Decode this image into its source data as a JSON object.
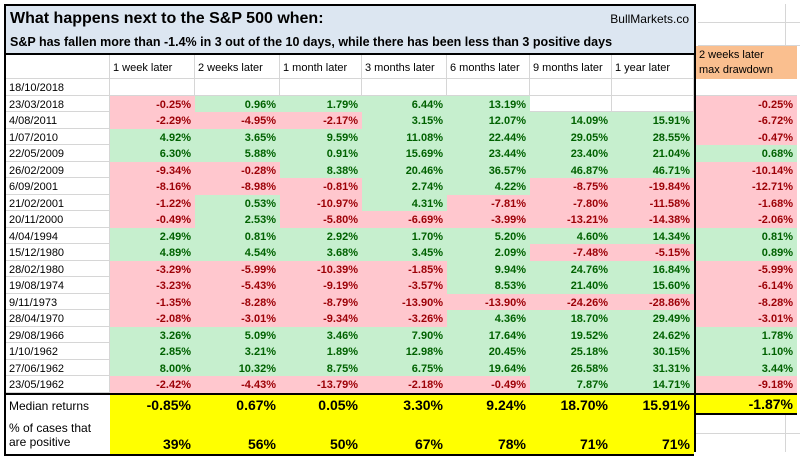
{
  "chart_data": {
    "type": "table",
    "title": "What happens next to the S&P 500 when:",
    "subtitle": "S&P has fallen more than -1.4% in 3 out of the 10 days, while there has been less than 3 positive days",
    "brand": "BullMarkets.co",
    "columns": [
      "1 week later",
      "2 weeks later",
      "1 month later",
      "3 months later",
      "6 months later",
      "9 months later",
      "1 year later"
    ],
    "drawdown_header_line1": "2 weeks later",
    "drawdown_header_line2": "max drawdown",
    "rows": [
      {
        "date": "18/10/2018",
        "values": [
          "",
          "",
          "",
          "",
          "",
          "",
          ""
        ],
        "max_drawdown": ""
      },
      {
        "date": "23/03/2018",
        "values": [
          "-0.25%",
          "0.96%",
          "1.79%",
          "6.44%",
          "13.19%",
          "",
          ""
        ],
        "max_drawdown": "-0.25%"
      },
      {
        "date": "4/08/2011",
        "values": [
          "-2.29%",
          "-4.95%",
          "-2.17%",
          "3.15%",
          "12.07%",
          "14.09%",
          "15.91%"
        ],
        "max_drawdown": "-6.72%"
      },
      {
        "date": "1/07/2010",
        "values": [
          "4.92%",
          "3.65%",
          "9.59%",
          "11.08%",
          "22.44%",
          "29.05%",
          "28.55%"
        ],
        "max_drawdown": "-0.47%"
      },
      {
        "date": "22/05/2009",
        "values": [
          "6.30%",
          "5.88%",
          "0.91%",
          "15.69%",
          "23.44%",
          "23.40%",
          "21.04%"
        ],
        "max_drawdown": "0.68%"
      },
      {
        "date": "26/02/2009",
        "values": [
          "-9.34%",
          "-0.28%",
          "8.38%",
          "20.46%",
          "36.57%",
          "46.87%",
          "46.71%"
        ],
        "max_drawdown": "-10.14%"
      },
      {
        "date": "6/09/2001",
        "values": [
          "-8.16%",
          "-8.98%",
          "-0.81%",
          "2.74%",
          "4.22%",
          "-8.75%",
          "-19.84%"
        ],
        "max_drawdown": "-12.71%"
      },
      {
        "date": "21/02/2001",
        "values": [
          "-1.22%",
          "0.53%",
          "-10.97%",
          "4.31%",
          "-7.81%",
          "-7.80%",
          "-11.58%"
        ],
        "max_drawdown": "-1.68%"
      },
      {
        "date": "20/11/2000",
        "values": [
          "-0.49%",
          "2.53%",
          "-5.80%",
          "-6.69%",
          "-3.99%",
          "-13.21%",
          "-14.38%"
        ],
        "max_drawdown": "-2.06%"
      },
      {
        "date": "4/04/1994",
        "values": [
          "2.49%",
          "0.81%",
          "2.92%",
          "1.70%",
          "5.20%",
          "4.60%",
          "14.34%"
        ],
        "max_drawdown": "0.81%"
      },
      {
        "date": "15/12/1980",
        "values": [
          "4.89%",
          "4.54%",
          "3.68%",
          "3.45%",
          "2.09%",
          "-7.48%",
          "-5.15%"
        ],
        "max_drawdown": "0.89%"
      },
      {
        "date": "28/02/1980",
        "values": [
          "-3.29%",
          "-5.99%",
          "-10.39%",
          "-1.85%",
          "9.94%",
          "24.76%",
          "16.84%"
        ],
        "max_drawdown": "-5.99%"
      },
      {
        "date": "19/08/1974",
        "values": [
          "-3.23%",
          "-5.43%",
          "-9.19%",
          "-3.57%",
          "8.53%",
          "21.40%",
          "15.60%"
        ],
        "max_drawdown": "-6.14%"
      },
      {
        "date": "9/11/1973",
        "values": [
          "-1.35%",
          "-8.28%",
          "-8.79%",
          "-13.90%",
          "-13.90%",
          "-24.26%",
          "-28.86%"
        ],
        "max_drawdown": "-8.28%"
      },
      {
        "date": "28/04/1970",
        "values": [
          "-2.08%",
          "-3.01%",
          "-9.34%",
          "-3.26%",
          "4.36%",
          "18.70%",
          "29.49%"
        ],
        "max_drawdown": "-3.01%"
      },
      {
        "date": "29/08/1966",
        "values": [
          "3.26%",
          "5.09%",
          "3.46%",
          "7.90%",
          "17.64%",
          "19.52%",
          "24.62%"
        ],
        "max_drawdown": "1.78%"
      },
      {
        "date": "1/10/1962",
        "values": [
          "2.85%",
          "3.21%",
          "1.89%",
          "12.98%",
          "20.45%",
          "25.18%",
          "30.15%"
        ],
        "max_drawdown": "1.10%"
      },
      {
        "date": "27/06/1962",
        "values": [
          "8.00%",
          "10.32%",
          "8.75%",
          "6.75%",
          "19.64%",
          "26.58%",
          "31.31%"
        ],
        "max_drawdown": "3.44%"
      },
      {
        "date": "23/05/1962",
        "values": [
          "-2.42%",
          "-4.43%",
          "-13.79%",
          "-2.18%",
          "-0.49%",
          "7.87%",
          "14.71%"
        ],
        "max_drawdown": "-9.18%"
      }
    ],
    "median_label": "Median returns",
    "median_values": [
      "-0.85%",
      "0.67%",
      "0.05%",
      "3.30%",
      "9.24%",
      "18.70%",
      "15.91%"
    ],
    "median_max_drawdown": "-1.87%",
    "positive_label": "% of cases that are positive",
    "positive_values": [
      "39%",
      "56%",
      "50%",
      "67%",
      "78%",
      "71%",
      "71%"
    ],
    "positive_max_drawdown": ""
  },
  "colors": {
    "blue": "#DCE6F1",
    "orange": "#FABF8F",
    "yellow": "#FFFF00",
    "pos_bg": "#C6EFCE",
    "pos_text": "#006100",
    "neg_bg": "#FFC7CE",
    "neg_text": "#9C0006",
    "grid": "#D6D6D6"
  }
}
